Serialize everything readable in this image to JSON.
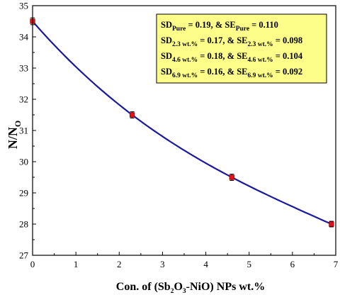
{
  "chart_data": {
    "type": "scatter",
    "xlabel": {
      "pre": "Con. of (Sb",
      "sub1": "2",
      "mid": "O",
      "sub2": "3",
      "post": "-NiO) NPs wt.%"
    },
    "ylabel": {
      "main": "N/N",
      "sub": "O"
    },
    "xlim": [
      0,
      7
    ],
    "ylim": [
      27,
      35
    ],
    "xticks": [
      "0",
      "1",
      "2",
      "3",
      "4",
      "5",
      "6",
      "7"
    ],
    "yticks": [
      "27",
      "28",
      "29",
      "30",
      "31",
      "32",
      "33",
      "34",
      "35"
    ],
    "grid": false,
    "series": [
      {
        "x": [
          0,
          2.3,
          4.6,
          6.9
        ],
        "y": [
          34.5,
          31.5,
          29.5,
          28.0
        ],
        "yerr": [
          0.11,
          0.1,
          0.1,
          0.09
        ],
        "marker_color": "#e8101a",
        "line_color": "#1a1a9c"
      }
    ],
    "legend": {
      "placement": "top-right",
      "background": "#fdfd8a",
      "entries": [
        {
          "sd_label": "SD",
          "sd_sub": "Pure",
          "sd_value": "= 0.19,",
          "amp": "&",
          "se_label": "SE",
          "se_sub": "Pure",
          "se_value": "= 0.110"
        },
        {
          "sd_label": "SD",
          "sd_sub": "2.3 wt.%",
          "sd_value": "= 0.17,",
          "amp": "&",
          "se_label": "SE",
          "se_sub": "2.3 wt.%",
          "se_value": "= 0.098"
        },
        {
          "sd_label": "SD",
          "sd_sub": "4.6 wt.%",
          "sd_value": "= 0.18,",
          "amp": "&",
          "se_label": "SE",
          "se_sub": "4.6 wt.%",
          "se_value": "= 0.104"
        },
        {
          "sd_label": "SD",
          "sd_sub": "6.9 wt.%",
          "sd_value": "= 0.16,",
          "amp": "&",
          "se_label": "SE",
          "se_sub": "6.9 wt.%",
          "se_value": "= 0.092"
        }
      ]
    }
  }
}
